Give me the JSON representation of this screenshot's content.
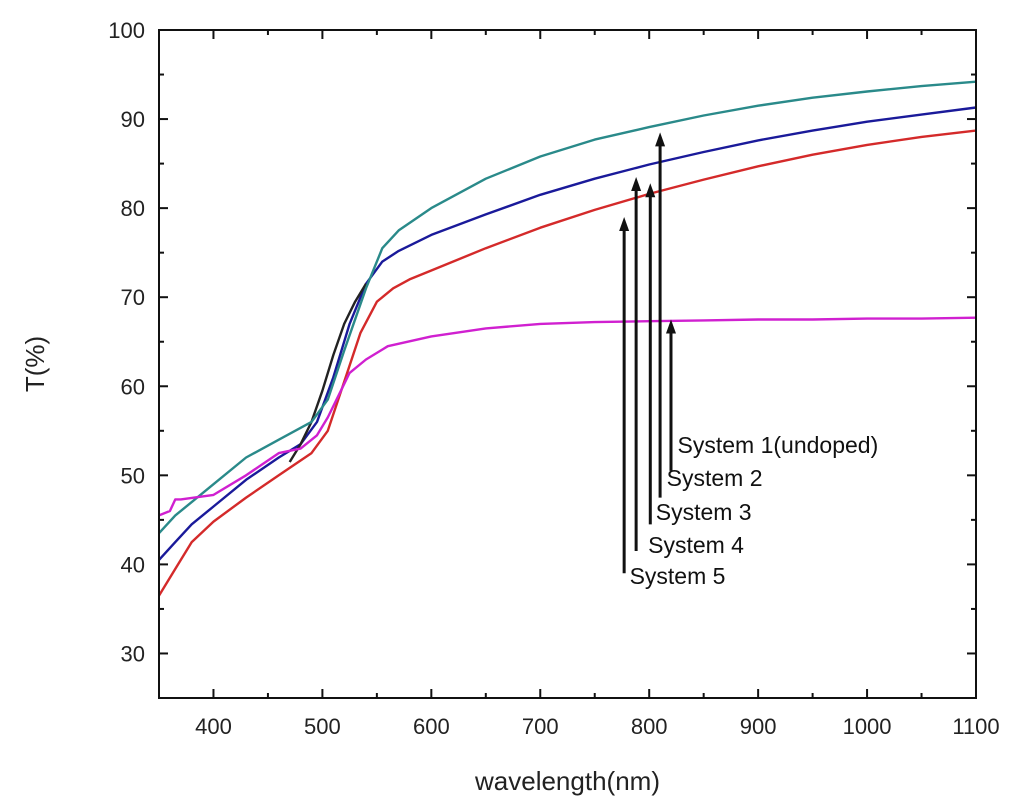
{
  "chart_data": {
    "type": "line",
    "title": "",
    "xlabel": "wavelength(nm)",
    "ylabel": "T(%)",
    "xlim": [
      350,
      1100
    ],
    "ylim": [
      25,
      100
    ],
    "xticks": [
      400,
      500,
      600,
      700,
      800,
      900,
      1000,
      1100
    ],
    "yticks": [
      30,
      40,
      50,
      60,
      70,
      80,
      90,
      100
    ],
    "grid": false,
    "legend": "none",
    "series": [
      {
        "color": "#d42a2a",
        "x": [
          350,
          365,
          380,
          400,
          430,
          460,
          490,
          505,
          520,
          535,
          550,
          565,
          580,
          600,
          650,
          700,
          750,
          800,
          850,
          900,
          950,
          1000,
          1050,
          1100
        ],
        "y": [
          36.5,
          39.5,
          42.5,
          44.8,
          47.5,
          50.0,
          52.5,
          55.0,
          60.5,
          66.0,
          69.5,
          71.0,
          72.0,
          73.0,
          75.5,
          77.8,
          79.8,
          81.6,
          83.2,
          84.7,
          86.0,
          87.1,
          88.0,
          88.7
        ]
      },
      {
        "color": "#1a1a9a",
        "x": [
          350,
          365,
          380,
          400,
          430,
          460,
          480,
          495,
          510,
          525,
          540,
          555,
          570,
          600,
          650,
          700,
          750,
          800,
          850,
          900,
          950,
          1000,
          1050,
          1100
        ],
        "y": [
          40.5,
          42.5,
          44.5,
          46.5,
          49.5,
          52.0,
          53.5,
          56.0,
          61.0,
          67.0,
          71.5,
          74.0,
          75.2,
          77.0,
          79.3,
          81.5,
          83.3,
          84.9,
          86.3,
          87.6,
          88.7,
          89.7,
          90.5,
          91.3
        ]
      },
      {
        "color": "#222222",
        "x": [
          470,
          480,
          490,
          500,
          510,
          520,
          530,
          540
        ],
        "y": [
          51.5,
          53.5,
          56.0,
          59.5,
          63.5,
          67.0,
          69.5,
          71.5
        ]
      },
      {
        "color": "#2a8a8a",
        "x": [
          350,
          365,
          380,
          400,
          430,
          460,
          490,
          505,
          520,
          540,
          555,
          570,
          600,
          650,
          700,
          750,
          800,
          850,
          900,
          950,
          1000,
          1050,
          1100
        ],
        "y": [
          43.5,
          45.5,
          47.0,
          49.0,
          52.0,
          54.0,
          56.0,
          58.5,
          64.0,
          71.0,
          75.5,
          77.5,
          80.0,
          83.3,
          85.8,
          87.7,
          89.1,
          90.4,
          91.5,
          92.4,
          93.1,
          93.7,
          94.2
        ]
      },
      {
        "color": "#d020d0",
        "x": [
          350,
          360,
          365,
          370,
          400,
          430,
          460,
          480,
          495,
          505,
          515,
          525,
          540,
          560,
          600,
          650,
          700,
          750,
          800,
          850,
          900,
          950,
          1000,
          1050,
          1100
        ],
        "y": [
          45.5,
          46.0,
          47.3,
          47.3,
          47.8,
          50.0,
          52.5,
          53.0,
          54.5,
          56.5,
          59.0,
          61.5,
          63.0,
          64.5,
          65.6,
          66.5,
          67.0,
          67.2,
          67.3,
          67.4,
          67.5,
          67.5,
          67.6,
          67.6,
          67.7
        ]
      }
    ],
    "annotations": [
      {
        "text": "System 1(undoped)",
        "arrow_x": 820,
        "arrow_y_from": 50.5,
        "arrow_y_to": 67.5,
        "text_x": 826,
        "text_y": 52.5
      },
      {
        "text": "System 2",
        "arrow_x": 810,
        "arrow_y_from": 47.5,
        "arrow_y_to": 88.5,
        "text_x": 816,
        "text_y": 48.8
      },
      {
        "text": "System 3",
        "arrow_x": 801,
        "arrow_y_from": 44.5,
        "arrow_y_to": 82.8,
        "text_x": 806,
        "text_y": 45.0
      },
      {
        "text": "System 4",
        "arrow_x": 788,
        "arrow_y_from": 41.5,
        "arrow_y_to": 83.5,
        "text_x": 799,
        "text_y": 41.3
      },
      {
        "text": "System 5",
        "arrow_x": 777,
        "arrow_y_from": 39.0,
        "arrow_y_to": 79.0,
        "text_x": 782,
        "text_y": 37.8
      }
    ]
  }
}
